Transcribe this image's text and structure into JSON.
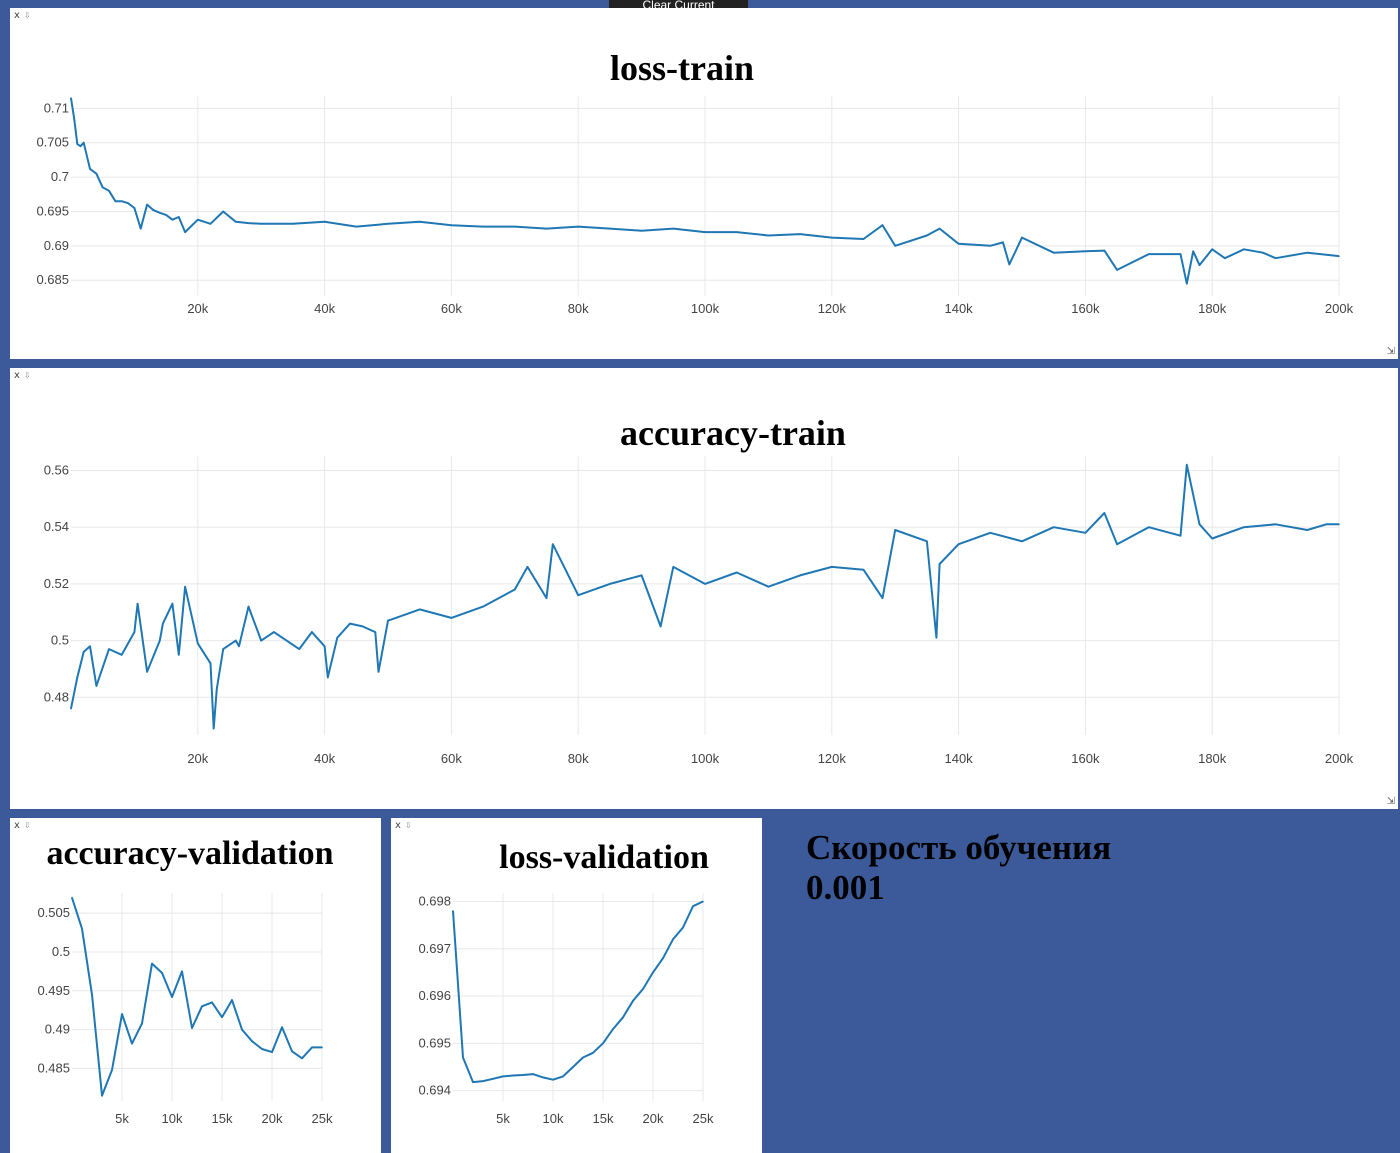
{
  "toolbar": {
    "clear_button_label": "Clear Current Environment"
  },
  "pane_controls": {
    "close": "x",
    "download": "⇩",
    "resize": "⇲"
  },
  "note": {
    "line1": "Скорость обучения",
    "line2": "0.001"
  },
  "colors": {
    "line": "#1f77b4",
    "background": "#3c5a99"
  },
  "chart_data": [
    {
      "id": "loss-train",
      "type": "line",
      "title": "loss-train",
      "xlabel": "",
      "ylabel": "",
      "xlim": [
        0,
        200000
      ],
      "ylim": [
        0.6827,
        0.7118
      ],
      "xticks": [
        20000,
        40000,
        60000,
        80000,
        100000,
        120000,
        140000,
        160000,
        180000,
        200000
      ],
      "xtick_labels": [
        "20k",
        "40k",
        "60k",
        "80k",
        "100k",
        "120k",
        "140k",
        "160k",
        "180k",
        "200k"
      ],
      "yticks": [
        0.685,
        0.69,
        0.695,
        0.7,
        0.705,
        0.71
      ],
      "ytick_labels": [
        "0.685",
        "0.69",
        "0.695",
        "0.7",
        "0.705",
        "0.71"
      ],
      "grid": true,
      "x": [
        0,
        500,
        1000,
        1500,
        2000,
        3000,
        4000,
        5000,
        6000,
        7000,
        8000,
        9000,
        10000,
        11000,
        12000,
        13000,
        14000,
        15000,
        16000,
        17000,
        18000,
        20000,
        22000,
        24000,
        26000,
        28000,
        30000,
        35000,
        40000,
        45000,
        50000,
        55000,
        60000,
        65000,
        70000,
        75000,
        80000,
        85000,
        90000,
        95000,
        100000,
        105000,
        110000,
        115000,
        120000,
        125000,
        128000,
        130000,
        135000,
        137000,
        140000,
        145000,
        147000,
        148000,
        150000,
        155000,
        160000,
        163000,
        165000,
        170000,
        175000,
        176000,
        177000,
        178000,
        180000,
        182000,
        185000,
        188000,
        190000,
        195000,
        200000
      ],
      "series": [
        {
          "values": [
            0.7115,
            0.7085,
            0.7048,
            0.7045,
            0.705,
            0.7012,
            0.7005,
            0.6985,
            0.698,
            0.6965,
            0.6965,
            0.6962,
            0.6955,
            0.6925,
            0.696,
            0.6952,
            0.6948,
            0.6945,
            0.6938,
            0.6942,
            0.692,
            0.6938,
            0.6932,
            0.695,
            0.6935,
            0.6933,
            0.6932,
            0.6932,
            0.6935,
            0.6928,
            0.6932,
            0.6935,
            0.693,
            0.6928,
            0.6928,
            0.6925,
            0.6928,
            0.6925,
            0.6922,
            0.6925,
            0.692,
            0.692,
            0.6915,
            0.6917,
            0.6912,
            0.691,
            0.693,
            0.69,
            0.6915,
            0.6925,
            0.6903,
            0.69,
            0.6905,
            0.6873,
            0.6912,
            0.689,
            0.6892,
            0.6893,
            0.6865,
            0.6888,
            0.6888,
            0.6845,
            0.6892,
            0.6872,
            0.6895,
            0.6882,
            0.6895,
            0.689,
            0.6882,
            0.689,
            0.6885
          ]
        }
      ]
    },
    {
      "id": "accuracy-train",
      "type": "line",
      "title": "accuracy-train",
      "xlabel": "",
      "ylabel": "",
      "xlim": [
        0,
        200000
      ],
      "ylim": [
        0.4667,
        0.5651
      ],
      "xticks": [
        20000,
        40000,
        60000,
        80000,
        100000,
        120000,
        140000,
        160000,
        180000,
        200000
      ],
      "xtick_labels": [
        "20k",
        "40k",
        "60k",
        "80k",
        "100k",
        "120k",
        "140k",
        "160k",
        "180k",
        "200k"
      ],
      "yticks": [
        0.48,
        0.5,
        0.52,
        0.54,
        0.56
      ],
      "ytick_labels": [
        "0.48",
        "0.5",
        "0.52",
        "0.54",
        "0.56"
      ],
      "grid": true,
      "x": [
        0,
        1000,
        2000,
        3000,
        4000,
        6000,
        8000,
        10000,
        10500,
        12000,
        14000,
        14500,
        16000,
        17000,
        18000,
        20000,
        22000,
        22500,
        23000,
        24000,
        26000,
        26500,
        28000,
        30000,
        32000,
        34000,
        36000,
        38000,
        40000,
        40500,
        42000,
        44000,
        46000,
        48000,
        48500,
        50000,
        55000,
        60000,
        65000,
        70000,
        72000,
        75000,
        76000,
        80000,
        85000,
        90000,
        93000,
        95000,
        100000,
        105000,
        110000,
        115000,
        120000,
        125000,
        128000,
        130000,
        135000,
        136500,
        137000,
        140000,
        145000,
        150000,
        155000,
        160000,
        163000,
        165000,
        170000,
        175000,
        176000,
        178000,
        180000,
        185000,
        190000,
        195000,
        198000,
        200000
      ],
      "series": [
        {
          "values": [
            0.476,
            0.487,
            0.496,
            0.498,
            0.484,
            0.497,
            0.495,
            0.503,
            0.513,
            0.489,
            0.5,
            0.506,
            0.513,
            0.495,
            0.519,
            0.499,
            0.492,
            0.469,
            0.483,
            0.497,
            0.5,
            0.498,
            0.512,
            0.5,
            0.503,
            0.5,
            0.497,
            0.503,
            0.498,
            0.487,
            0.501,
            0.506,
            0.505,
            0.503,
            0.489,
            0.507,
            0.511,
            0.508,
            0.512,
            0.518,
            0.526,
            0.515,
            0.534,
            0.516,
            0.52,
            0.523,
            0.505,
            0.526,
            0.52,
            0.524,
            0.519,
            0.523,
            0.526,
            0.525,
            0.515,
            0.539,
            0.535,
            0.501,
            0.527,
            0.534,
            0.538,
            0.535,
            0.54,
            0.538,
            0.545,
            0.534,
            0.54,
            0.537,
            0.562,
            0.541,
            0.536,
            0.54,
            0.541,
            0.539,
            0.541,
            0.541
          ]
        }
      ]
    },
    {
      "id": "accuracy-validation",
      "type": "line",
      "title": "accuracy-validation",
      "xlabel": "",
      "ylabel": "",
      "xlim": [
        0,
        25000
      ],
      "ylim": [
        0.4808,
        0.5076
      ],
      "xticks": [
        5000,
        10000,
        15000,
        20000,
        25000
      ],
      "xtick_labels": [
        "5k",
        "10k",
        "15k",
        "20k",
        "25k"
      ],
      "yticks": [
        0.485,
        0.49,
        0.495,
        0.5,
        0.505
      ],
      "ytick_labels": [
        "0.485",
        "0.49",
        "0.495",
        "0.5",
        "0.505"
      ],
      "grid": true,
      "x": [
        0,
        1000,
        2000,
        3000,
        4000,
        5000,
        6000,
        7000,
        8000,
        9000,
        10000,
        11000,
        12000,
        13000,
        14000,
        15000,
        16000,
        17000,
        18000,
        19000,
        20000,
        21000,
        22000,
        23000,
        24000,
        25000
      ],
      "series": [
        {
          "values": [
            0.507,
            0.503,
            0.4945,
            0.4815,
            0.4848,
            0.492,
            0.4882,
            0.4908,
            0.4985,
            0.4973,
            0.4942,
            0.4975,
            0.4902,
            0.493,
            0.4935,
            0.4916,
            0.4938,
            0.49,
            0.4885,
            0.4875,
            0.4871,
            0.4903,
            0.4872,
            0.4863,
            0.4877,
            0.4877
          ]
        }
      ]
    },
    {
      "id": "loss-validation",
      "type": "line",
      "title": "loss-validation",
      "xlabel": "",
      "ylabel": "",
      "xlim": [
        0,
        25000
      ],
      "ylim": [
        0.69378,
        0.69818
      ],
      "xticks": [
        5000,
        10000,
        15000,
        20000,
        25000
      ],
      "xtick_labels": [
        "5k",
        "10k",
        "15k",
        "20k",
        "25k"
      ],
      "yticks": [
        0.694,
        0.695,
        0.696,
        0.697,
        0.698
      ],
      "ytick_labels": [
        "0.694",
        "0.695",
        "0.696",
        "0.697",
        "0.698"
      ],
      "grid": true,
      "x": [
        0,
        1000,
        2000,
        3000,
        4000,
        5000,
        6000,
        7000,
        8000,
        9000,
        10000,
        11000,
        12000,
        13000,
        14000,
        15000,
        16000,
        17000,
        18000,
        19000,
        20000,
        21000,
        22000,
        23000,
        24000,
        25000
      ],
      "series": [
        {
          "values": [
            0.6978,
            0.6947,
            0.69418,
            0.6942,
            0.69425,
            0.6943,
            0.69432,
            0.69433,
            0.69435,
            0.69428,
            0.69423,
            0.6943,
            0.6945,
            0.6947,
            0.6948,
            0.695,
            0.6953,
            0.69555,
            0.6959,
            0.69615,
            0.6965,
            0.6968,
            0.6972,
            0.69745,
            0.6979,
            0.698
          ]
        }
      ]
    }
  ]
}
